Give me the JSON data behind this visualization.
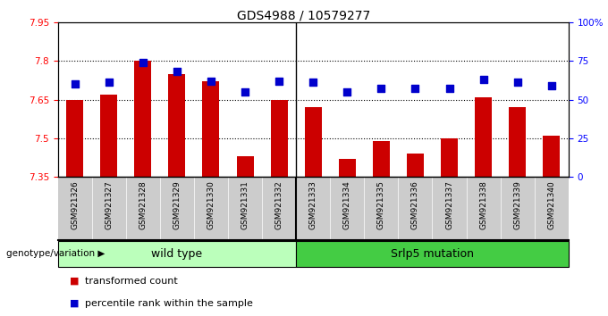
{
  "title": "GDS4988 / 10579277",
  "samples": [
    "GSM921326",
    "GSM921327",
    "GSM921328",
    "GSM921329",
    "GSM921330",
    "GSM921331",
    "GSM921332",
    "GSM921333",
    "GSM921334",
    "GSM921335",
    "GSM921336",
    "GSM921337",
    "GSM921338",
    "GSM921339",
    "GSM921340"
  ],
  "transformed_count": [
    7.65,
    7.67,
    7.8,
    7.75,
    7.72,
    7.43,
    7.65,
    7.62,
    7.42,
    7.49,
    7.44,
    7.5,
    7.66,
    7.62,
    7.51
  ],
  "percentile_rank": [
    60,
    61,
    74,
    68,
    62,
    55,
    62,
    61,
    55,
    57,
    57,
    57,
    63,
    61,
    59
  ],
  "ylim_left": [
    7.35,
    7.95
  ],
  "ylim_right": [
    0,
    100
  ],
  "yticks_left": [
    7.35,
    7.5,
    7.65,
    7.8,
    7.95
  ],
  "yticks_right": [
    0,
    25,
    50,
    75,
    100
  ],
  "ytick_labels_right": [
    "0",
    "25",
    "50",
    "75",
    "100%"
  ],
  "bar_color": "#cc0000",
  "dot_color": "#0000cc",
  "wild_type_indices": [
    0,
    1,
    2,
    3,
    4,
    5,
    6
  ],
  "mutation_indices": [
    7,
    8,
    9,
    10,
    11,
    12,
    13,
    14
  ],
  "wild_type_label": "wild type",
  "mutation_label": "Srlp5 mutation",
  "group_label": "genotype/variation",
  "legend_bar_label": "transformed count",
  "legend_dot_label": "percentile rank within the sample",
  "wild_type_color": "#bbffbb",
  "mutation_color": "#44cc44",
  "sample_bg_color": "#cccccc",
  "bar_width": 0.5,
  "dot_size": 30,
  "title_fontsize": 10,
  "tick_fontsize": 7.5,
  "label_fontsize": 8
}
